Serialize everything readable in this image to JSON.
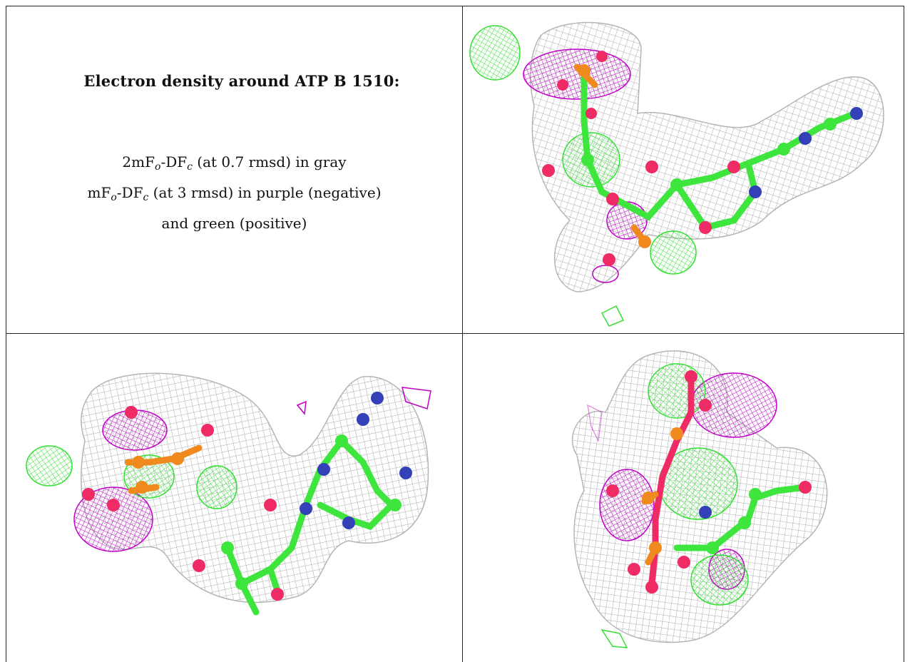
{
  "panel_text": {
    "heading": "Electron density around ATP B 1510:",
    "line1": {
      "prefix": "2mF",
      "sub1": "o",
      "mid": "-DF",
      "sub2": "c",
      "suffix": " (at 0.7 rmsd) in gray"
    },
    "line2": {
      "prefix": "mF",
      "sub1": "o",
      "mid": "-DF",
      "sub2": "c",
      "suffix": " (at 3 rmsd) in purple (negative)"
    },
    "line3": "and green (positive)"
  },
  "colors": {
    "density_2fofc": "#a9a9a9",
    "density_negative": "#c000c8",
    "density_positive": "#33e033",
    "carbon": "#3de53d",
    "oxygen": "#ee2b64",
    "phosphorus": "#f08a1e",
    "nitrogen": "#3340b8"
  },
  "views": [
    {
      "id": "view-1"
    },
    {
      "id": "view-2"
    },
    {
      "id": "view-3"
    }
  ]
}
